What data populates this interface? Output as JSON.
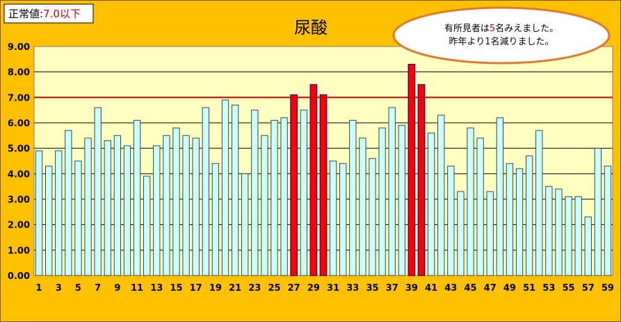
{
  "badge": {
    "label": "正常値:",
    "value": "7.0以下"
  },
  "callout": {
    "line1_prefix": "有所見者は",
    "line1_number": "5",
    "line1_suffix": "名みえました。",
    "line2_prefix": "昨年より",
    "line2_number": "1",
    "line2_suffix": "名減りました。"
  },
  "colors": {
    "background": "#FFC000",
    "plot_background": "#FFFFC0",
    "bar_normal": "#CCFFFF",
    "bar_abnormal": "#FF0000",
    "threshold_line": "#C00000",
    "red_text": "#C00000",
    "blue_text": "#0000C0"
  },
  "chart_data": {
    "type": "bar",
    "title": "尿酸",
    "xlabel": "",
    "ylabel": "",
    "ylim": [
      0,
      9
    ],
    "y_ticks": [
      "0.00",
      "1.00",
      "2.00",
      "3.00",
      "4.00",
      "5.00",
      "6.00",
      "7.00",
      "8.00",
      "9.00"
    ],
    "x_tick_labels": [
      "1",
      "3",
      "5",
      "7",
      "9",
      "11",
      "13",
      "15",
      "17",
      "19",
      "21",
      "23",
      "25",
      "27",
      "29",
      "31",
      "33",
      "35",
      "37",
      "39",
      "41",
      "43",
      "45",
      "47",
      "49",
      "51",
      "53",
      "55",
      "57",
      "59"
    ],
    "categories": [
      1,
      2,
      3,
      4,
      5,
      6,
      7,
      8,
      9,
      10,
      11,
      12,
      13,
      14,
      15,
      16,
      17,
      18,
      19,
      20,
      21,
      22,
      23,
      24,
      25,
      26,
      27,
      28,
      29,
      30,
      31,
      32,
      33,
      34,
      35,
      36,
      37,
      38,
      39,
      40,
      41,
      42,
      43,
      44,
      45,
      46,
      47,
      48,
      49,
      50,
      51,
      52,
      53,
      54,
      55,
      56,
      57,
      58,
      59
    ],
    "values": [
      4.9,
      4.3,
      4.9,
      5.7,
      4.5,
      5.4,
      6.6,
      5.3,
      5.5,
      5.1,
      6.1,
      3.9,
      5.1,
      5.5,
      5.8,
      5.5,
      5.4,
      6.6,
      4.4,
      6.9,
      6.7,
      4.0,
      6.5,
      5.5,
      6.1,
      6.2,
      7.1,
      6.5,
      7.5,
      7.1,
      4.5,
      4.4,
      6.1,
      5.4,
      4.6,
      5.8,
      6.6,
      5.9,
      8.3,
      7.5,
      5.6,
      6.3,
      4.3,
      3.3,
      5.8,
      5.4,
      3.3,
      6.2,
      4.4,
      4.2,
      4.7,
      5.7,
      3.5,
      3.4,
      3.1,
      3.1,
      2.3,
      5.0,
      4.3
    ],
    "threshold": 7.0,
    "grid": true,
    "legend": "none"
  }
}
